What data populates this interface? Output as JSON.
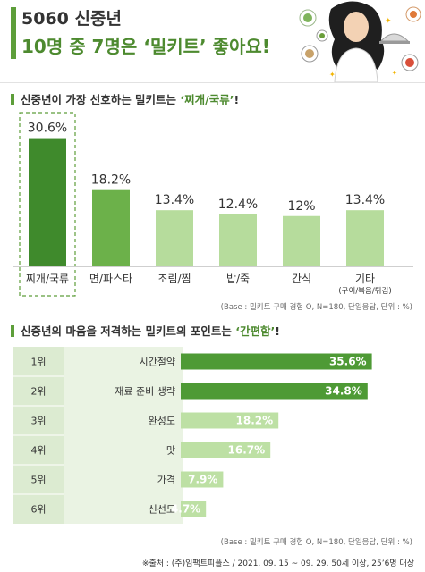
{
  "header": {
    "title_line1": "5060 신중년",
    "title_line2": "10명 중 7명은 ‘밀키트’ 좋아요!"
  },
  "section1": {
    "title_prefix": "신중년이 가장 선호하는 밀키트는 ",
    "title_highlight": "‘찌개/국류’",
    "title_suffix": "!",
    "base_note": "(Base : 밀키트 구매 경험 O, N=180, 단일응답, 단위 : %)"
  },
  "section2": {
    "title_prefix": "신중년의 마음을 저격하는 밀키트의 포인트는 ",
    "title_highlight": "‘간편함’",
    "title_suffix": "!",
    "base_note": "(Base : 밀키트 구매 경험 O, N=180, 단일응답, 단위 : %)"
  },
  "source": "※출처 : (주)임팩트피플스 / 2021. 09. 15 ~ 09. 29. 50세 이상, 25’6명 대상",
  "colors": {
    "accent": "#5d9e3a",
    "bar_top": "#3f8a2c",
    "bar_mid": "#6cb14a",
    "bar_light": "#b6dc9c",
    "hbar_dark": "#4e9a35",
    "hbar_light": "#bde0a4",
    "rank_bg": "#eaf3e3"
  },
  "chart_data": [
    {
      "type": "bar",
      "categories": [
        "찌개/국류",
        "면/파스타",
        "조림/찜",
        "밥/죽",
        "간식",
        "기타"
      ],
      "category_sub": [
        "",
        "",
        "",
        "",
        "",
        "(구이/볶음/튀김)"
      ],
      "values": [
        30.6,
        18.2,
        13.4,
        12.4,
        12,
        13.4
      ],
      "value_labels": [
        "30.6%",
        "18.2%",
        "13.4%",
        "12.4%",
        "12%",
        "13.4%"
      ],
      "title": "신중년이 가장 선호하는 밀키트는 ‘찌개/국류’!",
      "ylim": [
        0,
        32
      ],
      "highlight_index": 0
    },
    {
      "type": "bar",
      "orientation": "horizontal",
      "ranks": [
        "1위",
        "2위",
        "3위",
        "4위",
        "5위",
        "6위"
      ],
      "categories": [
        "시간절약",
        "재료 준비 생략",
        "완성도",
        "맛",
        "가격",
        "신선도"
      ],
      "values": [
        35.6,
        34.8,
        18.2,
        16.7,
        7.9,
        4.7
      ],
      "value_labels": [
        "35.6%",
        "34.8%",
        "18.2%",
        "16.7%",
        "7.9%",
        "4.7%"
      ],
      "title": "신중년의 마음을 저격하는 밀키트의 포인트는 ‘간편함’!",
      "xlim": [
        0,
        37
      ]
    }
  ]
}
